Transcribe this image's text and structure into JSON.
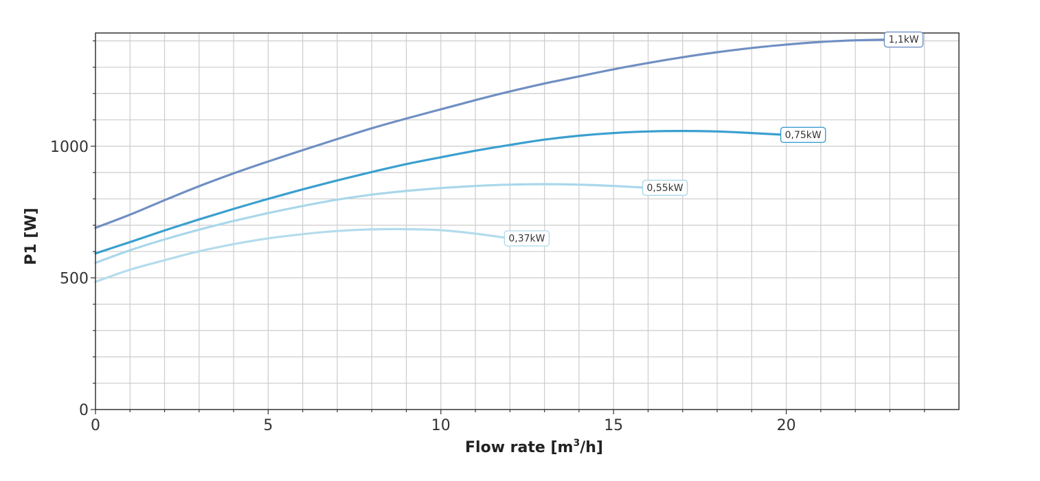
{
  "chart_data": {
    "type": "line",
    "xlabel": "Flow rate [m",
    "xlabel_sup": "3",
    "xlabel_tail": "/h]",
    "ylabel": "P1 [W]",
    "xlim": [
      0,
      25
    ],
    "ylim": [
      0,
      1430
    ],
    "x_ticks": [
      0,
      5,
      10,
      15,
      20
    ],
    "y_ticks": [
      0,
      500,
      1000
    ],
    "x_minor_step": 1,
    "y_minor_step": 100,
    "grid": true,
    "series": [
      {
        "name": "1,1kW",
        "color": "#6f8fc2",
        "x": [
          0,
          1,
          2,
          3,
          4,
          5,
          6,
          7,
          8,
          9,
          10,
          11,
          12,
          13,
          14,
          15,
          16,
          17,
          18,
          19,
          20,
          21,
          22,
          23
        ],
        "y": [
          690,
          740,
          795,
          848,
          897,
          942,
          985,
          1027,
          1068,
          1105,
          1140,
          1175,
          1208,
          1238,
          1265,
          1292,
          1316,
          1338,
          1357,
          1373,
          1386,
          1396,
          1402,
          1405
        ]
      },
      {
        "name": "0,75kW",
        "color": "#3a9fcf",
        "x": [
          0,
          1,
          2,
          3,
          4,
          5,
          6,
          7,
          8,
          9,
          10,
          11,
          12,
          13,
          14,
          15,
          16,
          17,
          18,
          19,
          20
        ],
        "y": [
          593,
          636,
          680,
          722,
          762,
          800,
          836,
          870,
          902,
          932,
          958,
          983,
          1005,
          1025,
          1040,
          1050,
          1056,
          1058,
          1056,
          1050,
          1043
        ]
      },
      {
        "name": "0,55kW",
        "color": "#a9d7ea",
        "x": [
          0,
          1,
          2,
          3,
          4,
          5,
          6,
          7,
          8,
          9,
          10,
          11,
          12,
          13,
          14,
          15,
          16
        ],
        "y": [
          557,
          605,
          646,
          683,
          716,
          746,
          773,
          797,
          816,
          830,
          841,
          849,
          854,
          856,
          854,
          849,
          842
        ]
      },
      {
        "name": "0,37kW",
        "color": "#b3dcec",
        "x": [
          0,
          1,
          2,
          3,
          4,
          5,
          6,
          7,
          8,
          9,
          10,
          11,
          12
        ],
        "y": [
          485,
          531,
          567,
          601,
          628,
          650,
          666,
          678,
          684,
          685,
          681,
          668,
          650
        ]
      }
    ]
  }
}
